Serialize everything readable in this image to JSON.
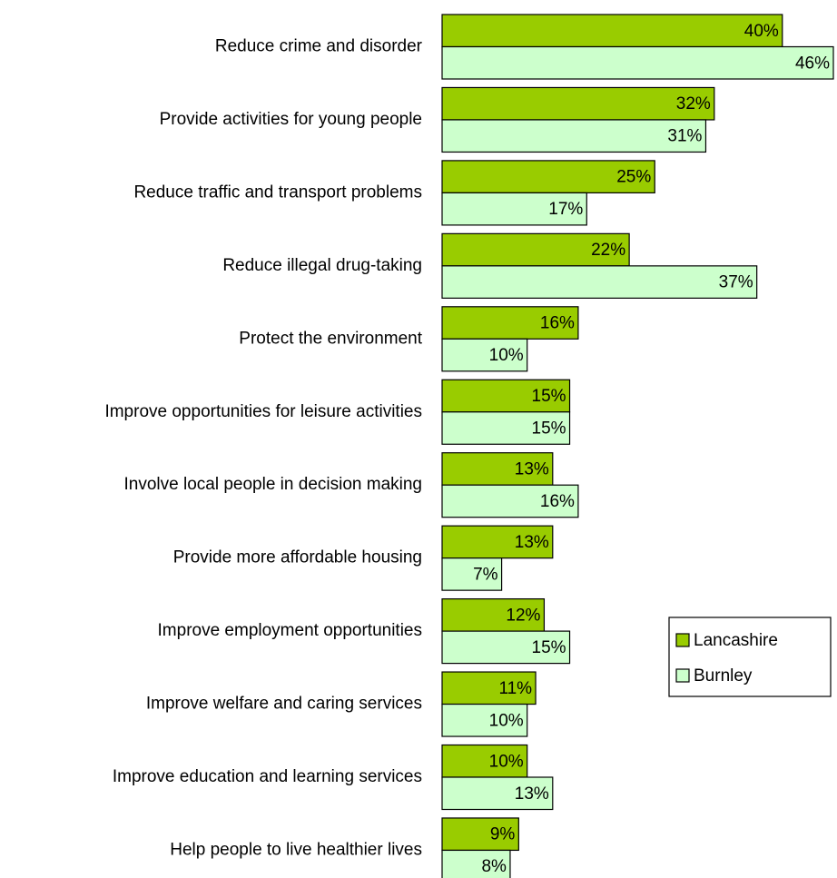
{
  "chart_data": {
    "type": "bar",
    "orientation": "horizontal",
    "categories": [
      "Reduce crime and disorder",
      "Provide activities for young people",
      "Reduce traffic and transport problems",
      "Reduce illegal drug-taking",
      "Protect the environment",
      "Improve opportunities for leisure activities",
      "Involve local people in decision making",
      "Provide more affordable housing",
      "Improve employment opportunities",
      "Improve welfare and caring services",
      "Improve education and learning services",
      "Help people to live healthier lives"
    ],
    "series": [
      {
        "name": "Lancashire",
        "color": "#99cc00",
        "values": [
          40,
          32,
          25,
          22,
          16,
          15,
          13,
          13,
          12,
          11,
          10,
          9
        ],
        "value_labels": [
          "40%",
          "32%",
          "25%",
          "22%",
          "16%",
          "15%",
          "13%",
          "13%",
          "12%",
          "11%",
          "10%",
          "9%"
        ]
      },
      {
        "name": "Burnley",
        "color": "#ccffcc",
        "values": [
          46,
          31,
          17,
          37,
          10,
          15,
          16,
          7,
          15,
          10,
          13,
          8
        ],
        "value_labels": [
          "46%",
          "31%",
          "17%",
          "37%",
          "10%",
          "15%",
          "16%",
          "7%",
          "15%",
          "10%",
          "13%",
          "8%"
        ]
      }
    ],
    "xlim": [
      0,
      46
    ],
    "legend": "right"
  }
}
